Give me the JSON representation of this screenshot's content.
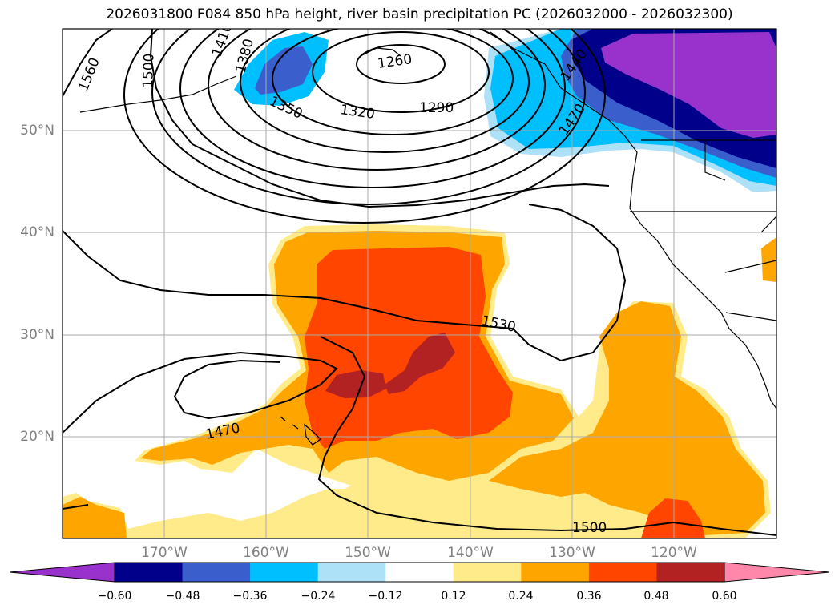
{
  "title": "2026031800 F084 850 hPa height, river basin precipitation PC (2026032000 - 2026032300)",
  "lat_labels": [
    "50°N",
    "40°N",
    "30°N",
    "20°N"
  ],
  "lon_labels": [
    "170°W",
    "160°W",
    "150°W",
    "140°W",
    "130°W",
    "120°W"
  ],
  "contour_labels": [
    "1560",
    "1500",
    "1410",
    "1380",
    "1350",
    "1320",
    "1290",
    "1260",
    "1440",
    "1470",
    "1530",
    "1470",
    "1500"
  ],
  "colorbar": {
    "ticks": [
      "−0.60",
      "−0.48",
      "−0.36",
      "−0.24",
      "−0.12",
      "0.12",
      "0.24",
      "0.36",
      "0.48",
      "0.60"
    ],
    "colors": [
      "#9932CC",
      "#00008B",
      "#3A5FCD",
      "#00BFFF",
      "#ADE1F8",
      "#FFFFFF",
      "#FFEB8A",
      "#FFA500",
      "#FF4500",
      "#B22222",
      "#FF88AA"
    ]
  }
}
